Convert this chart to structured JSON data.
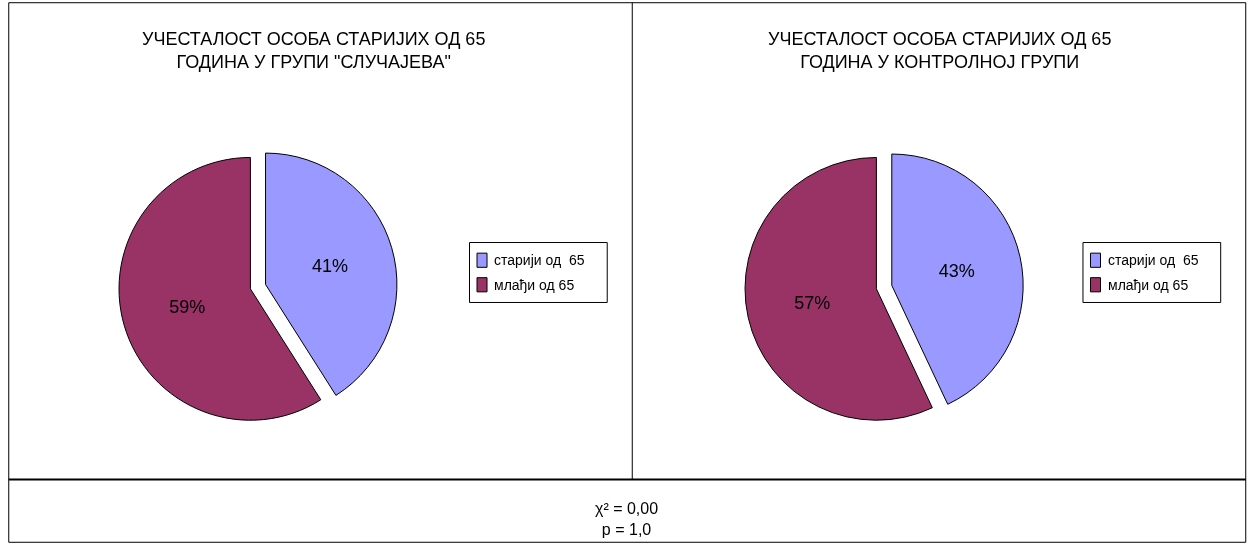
{
  "chart_data": [
    {
      "type": "pie",
      "title": "УЧЕСТАЛОСТ ОСОБА СТАРИЈИХ ОД 65\nГОДИНА У ГРУПИ \"СЛУЧАЈЕВА\"",
      "categories": [
        "старији од  65",
        "млађи од 65"
      ],
      "values": [
        41,
        59
      ],
      "colors": [
        "#9999ff",
        "#993366"
      ],
      "value_labels": [
        "41%",
        "59%"
      ],
      "legend": "right"
    },
    {
      "type": "pie",
      "title": "УЧЕСТАЛОСТ ОСОБА СТАРИЈИХ ОД 65\nГОДИНА У КОНТРОЛНОЈ ГРУПИ",
      "categories": [
        "старији од  65",
        "млађи од 65"
      ],
      "values": [
        43,
        57
      ],
      "colors": [
        "#9999ff",
        "#993366"
      ],
      "value_labels": [
        "43%",
        "57%"
      ],
      "legend": "right",
      "annotations": [
        "χ² = 0,00\np = 1,0"
      ]
    }
  ]
}
